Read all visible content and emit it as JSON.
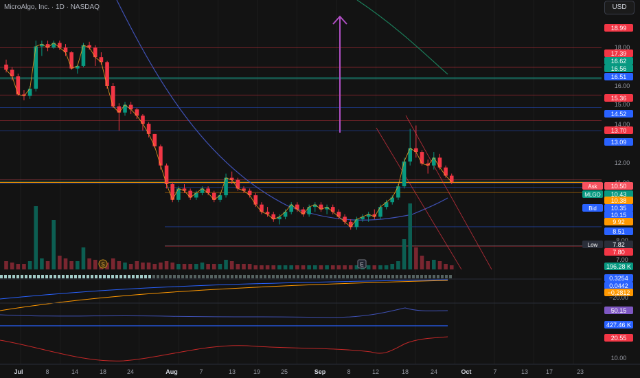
{
  "header": {
    "title": "MicroAlgo, Inc. · 1D · NASDAQ",
    "currency": "USD"
  },
  "chart_data": {
    "type": "candlestick",
    "symbol": "MLGO",
    "x_ticks": [
      "Jul",
      "8",
      "14",
      "18",
      "24",
      "Aug",
      "7",
      "13",
      "19",
      "25",
      "Sep",
      "8",
      "12",
      "18",
      "24",
      "Oct",
      "7",
      "13",
      "17",
      "23"
    ],
    "y_ticks": [
      "18.00",
      "16.00",
      "15.00",
      "14.00",
      "12.00",
      "11.00",
      "8.00",
      "7.00"
    ],
    "y_range_visible": [
      6.6,
      19.6
    ],
    "y_scale": "log",
    "candles": [
      [
        17.6,
        18.0,
        17.0,
        17.2
      ],
      [
        17.2,
        17.4,
        16.4,
        16.7
      ],
      [
        16.7,
        16.9,
        15.3,
        15.4
      ],
      [
        15.4,
        15.7,
        15.0,
        15.3
      ],
      [
        15.3,
        16.0,
        15.1,
        15.8
      ],
      [
        15.8,
        19.6,
        15.6,
        19.1
      ],
      [
        19.1,
        19.6,
        18.3,
        19.3
      ],
      [
        19.3,
        19.6,
        18.7,
        19.0
      ],
      [
        19.0,
        19.6,
        18.9,
        19.4
      ],
      [
        19.4,
        19.6,
        18.8,
        19.0
      ],
      [
        19.0,
        19.3,
        18.3,
        18.6
      ],
      [
        18.6,
        18.7,
        17.2,
        17.3
      ],
      [
        17.3,
        17.6,
        16.9,
        17.5
      ],
      [
        17.5,
        19.4,
        17.4,
        19.2
      ],
      [
        19.2,
        19.5,
        18.8,
        19.0
      ],
      [
        19.0,
        19.2,
        17.5,
        18.2
      ],
      [
        18.2,
        18.6,
        17.6,
        17.8
      ],
      [
        17.8,
        17.9,
        15.8,
        16.0
      ],
      [
        16.0,
        16.2,
        14.5,
        14.6
      ],
      [
        14.6,
        14.8,
        13.1,
        14.2
      ],
      [
        14.2,
        14.9,
        14.0,
        14.7
      ],
      [
        14.7,
        14.9,
        14.1,
        14.4
      ],
      [
        14.4,
        14.5,
        13.8,
        14.0
      ],
      [
        14.0,
        14.1,
        13.1,
        13.5
      ],
      [
        13.5,
        13.6,
        12.7,
        12.9
      ],
      [
        12.9,
        12.9,
        12.1,
        12.2
      ],
      [
        12.2,
        12.3,
        11.0,
        11.2
      ],
      [
        11.2,
        11.3,
        10.1,
        10.3
      ],
      [
        10.3,
        10.4,
        9.5,
        9.6
      ],
      [
        9.6,
        10.2,
        9.5,
        10.1
      ],
      [
        10.1,
        10.3,
        9.9,
        10.0
      ],
      [
        10.0,
        10.1,
        9.6,
        9.7
      ],
      [
        9.7,
        10.0,
        9.6,
        9.9
      ],
      [
        9.9,
        10.2,
        9.8,
        10.1
      ],
      [
        10.1,
        10.2,
        9.8,
        9.9
      ],
      [
        9.9,
        10.0,
        9.5,
        9.6
      ],
      [
        9.6,
        9.9,
        9.5,
        9.8
      ],
      [
        9.8,
        10.8,
        9.7,
        10.6
      ],
      [
        10.6,
        10.9,
        10.3,
        10.5
      ],
      [
        10.5,
        10.6,
        10.0,
        10.1
      ],
      [
        10.1,
        10.2,
        9.9,
        10.0
      ],
      [
        10.0,
        10.1,
        9.7,
        9.8
      ],
      [
        9.8,
        9.9,
        9.3,
        9.4
      ],
      [
        9.4,
        9.5,
        9.0,
        9.1
      ],
      [
        9.1,
        9.3,
        8.9,
        9.0
      ],
      [
        9.0,
        9.1,
        8.7,
        8.8
      ],
      [
        8.8,
        9.0,
        8.6,
        8.9
      ],
      [
        8.9,
        9.2,
        8.8,
        9.1
      ],
      [
        9.1,
        9.5,
        9.0,
        9.4
      ],
      [
        9.4,
        9.5,
        9.1,
        9.2
      ],
      [
        9.2,
        9.3,
        8.9,
        9.0
      ],
      [
        9.0,
        9.4,
        8.9,
        9.3
      ],
      [
        9.3,
        9.5,
        9.1,
        9.4
      ],
      [
        9.4,
        9.5,
        9.1,
        9.2
      ],
      [
        9.2,
        9.4,
        9.0,
        9.3
      ],
      [
        9.3,
        9.4,
        9.0,
        9.1
      ],
      [
        9.1,
        9.2,
        8.8,
        8.9
      ],
      [
        8.9,
        9.0,
        8.6,
        8.7
      ],
      [
        8.7,
        8.8,
        8.4,
        8.5
      ],
      [
        8.5,
        8.9,
        8.4,
        8.8
      ],
      [
        8.8,
        9.0,
        8.7,
        8.9
      ],
      [
        8.9,
        9.1,
        8.7,
        9.0
      ],
      [
        9.0,
        9.2,
        8.8,
        8.9
      ],
      [
        8.9,
        9.4,
        8.8,
        9.3
      ],
      [
        9.3,
        9.6,
        9.2,
        9.5
      ],
      [
        9.5,
        9.8,
        9.4,
        9.7
      ],
      [
        9.7,
        10.3,
        9.6,
        10.2
      ],
      [
        10.2,
        11.6,
        10.1,
        11.4
      ],
      [
        11.4,
        13.2,
        11.2,
        12.1
      ],
      [
        12.1,
        13.4,
        11.6,
        11.9
      ],
      [
        11.9,
        12.0,
        11.2,
        11.3
      ],
      [
        11.3,
        11.5,
        10.8,
        11.2
      ],
      [
        11.2,
        11.9,
        11.0,
        11.6
      ],
      [
        11.6,
        11.8,
        11.0,
        11.1
      ],
      [
        11.1,
        11.2,
        10.6,
        10.7
      ],
      [
        10.7,
        10.8,
        10.3,
        10.4
      ]
    ],
    "volumes": [
      0.3,
      0.25,
      0.2,
      0.2,
      0.3,
      2.3,
      0.4,
      0.3,
      1.8,
      0.5,
      0.4,
      0.3,
      0.3,
      0.8,
      0.4,
      0.35,
      0.3,
      0.25,
      0.4,
      0.3,
      0.25,
      0.2,
      0.3,
      0.25,
      0.25,
      0.2,
      0.25,
      0.3,
      0.25,
      0.2,
      0.2,
      0.2,
      0.2,
      0.25,
      0.2,
      0.2,
      0.2,
      0.35,
      0.3,
      0.2,
      0.2,
      0.2,
      0.15,
      0.15,
      0.15,
      0.15,
      0.15,
      0.15,
      0.15,
      0.15,
      0.15,
      0.15,
      0.15,
      0.15,
      0.15,
      0.15,
      0.15,
      0.15,
      0.15,
      0.15,
      0.15,
      0.15,
      0.15,
      0.15,
      0.15,
      0.2,
      0.3,
      1.1,
      2.4,
      0.8,
      0.5,
      0.3,
      0.35,
      0.3,
      0.2,
      0.15
    ],
    "horizontal_levels": [
      18.99,
      17.39,
      16.62,
      16.56,
      16.51,
      15.36,
      14.52,
      13.7,
      13.09,
      10.5,
      10.43,
      10.38,
      10.35,
      10.15,
      9.92,
      8.51,
      7.82,
      7.8
    ],
    "price_labels": [
      {
        "text": "18.99",
        "color": "#f23645"
      },
      {
        "text": "17.39",
        "color": "#f23645"
      },
      {
        "text": "16.62",
        "color": "#089981"
      },
      {
        "text": "16.56",
        "color": "#089981"
      },
      {
        "text": "16.51",
        "color": "#2962ff"
      },
      {
        "text": "15.36",
        "color": "#f23645"
      },
      {
        "text": "14.52",
        "color": "#2962ff"
      },
      {
        "text": "13.70",
        "color": "#f23645"
      },
      {
        "text": "13.09",
        "color": "#2962ff"
      },
      {
        "text": "10.50",
        "color": "#f7525f",
        "tag": "Ask"
      },
      {
        "text": "10.43",
        "color": "#089981",
        "tag": "MLGO"
      },
      {
        "text": "10.38",
        "color": "#ff9800"
      },
      {
        "text": "10.35",
        "color": "#2962ff",
        "tag": "Bid"
      },
      {
        "text": "10.15",
        "color": "#2962ff"
      },
      {
        "text": "9.92",
        "color": "#ff9800"
      },
      {
        "text": "8.51",
        "color": "#2962ff"
      },
      {
        "text": "7.82",
        "color": "#2a2e39",
        "tag": "Low"
      },
      {
        "text": "7.80",
        "color": "#f23645"
      },
      {
        "text": "196.28 K",
        "color": "#089981"
      }
    ],
    "indicator_labels": [
      {
        "text": "0.3254",
        "color": "#2962ff"
      },
      {
        "text": "0.0442",
        "color": "#2962ff"
      },
      {
        "text": "−0.2812",
        "color": "#ff9800"
      },
      {
        "text": "−20.00",
        "color": "transparent"
      },
      {
        "text": "50.15",
        "color": "#7e57c2"
      },
      {
        "text": "427.46 K",
        "color": "#2962ff"
      },
      {
        "text": "20.55",
        "color": "#f23645"
      },
      {
        "text": "10.00",
        "color": "transparent"
      }
    ],
    "markers": [
      "S",
      "E"
    ]
  }
}
